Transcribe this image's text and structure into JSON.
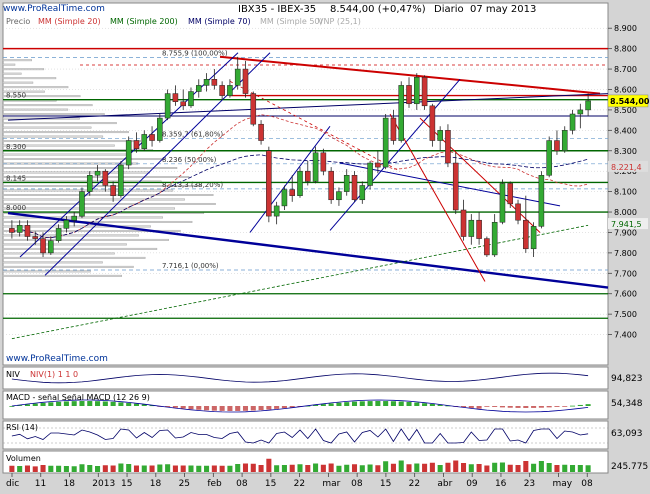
{
  "header": {
    "title": "IBX35 - IBEX-35",
    "price": "8.544,00 (+0,47%)",
    "period": "Diario",
    "date": "07 may 2013"
  },
  "watermark_url": "www.ProRealTime.com",
  "legend": [
    {
      "text": "Precio",
      "color": "#666666"
    },
    {
      "text": "MM (Simple 20)",
      "color": "#cc3333"
    },
    {
      "text": "MM (Simple 200)",
      "color": "#006600"
    },
    {
      "text": "MM (Simple 70)",
      "color": "#000066"
    },
    {
      "text": "MM (Simple 50)",
      "color": "#aaaaaa"
    },
    {
      "text": "VNP (25,1)",
      "color": "#aaaaaa"
    }
  ],
  "price_labels": {
    "y_axis": [
      "8.900",
      "8.800",
      "8.700",
      "8.600",
      "8.500",
      "8.400",
      "8.300",
      "8.200",
      "8.100",
      "8.000",
      "7.900",
      "7.800",
      "7.700",
      "7.600",
      "7.500",
      "7.400"
    ],
    "last_price": "8.544,00",
    "ma_20": "8.221,4",
    "ma_200": "7.941,5"
  },
  "fibonacci": [
    {
      "label": "8.755,9 (100,00%)",
      "value": 8755.9
    },
    {
      "label": "8.359,7 (61,80%)",
      "value": 8359.7
    },
    {
      "label": "8.236 (50,00%)",
      "value": 8236
    },
    {
      "label": "8.113,3 (38,20%)",
      "value": 8113.3
    },
    {
      "label": "7.716,1 (0,00%)",
      "value": 7716.1
    }
  ],
  "horizontal_levels": [
    {
      "label": "8.550",
      "value": 8550
    },
    {
      "label": "8.300",
      "value": 8300
    },
    {
      "label": "8.145",
      "value": 8145
    },
    {
      "label": "8.000",
      "value": 8000
    }
  ],
  "indicators": {
    "obv": {
      "name": "NIV",
      "sub": "NIV(1) 1 1 0",
      "value": "94,823"
    },
    "macd": {
      "name": "MACD",
      "sub": "MACD - señal  Señal  MACD (12 26 9)",
      "value": "54,348"
    },
    "rsi": {
      "name": "RSI (14)",
      "value": "63,093"
    },
    "volume": {
      "name": "Volumen",
      "value": "245.775"
    }
  },
  "x_axis": [
    "dic",
    "11",
    "18",
    "2013",
    "15",
    "18",
    "25",
    "feb",
    "08",
    "15",
    "22",
    "mar",
    "08",
    "15",
    "22",
    "abr",
    "09",
    "16",
    "23",
    "may",
    "08"
  ],
  "chart_data": {
    "type": "candlestick",
    "title": "IBX35 - IBEX-35",
    "ylim": [
      7300,
      8950
    ],
    "candles": [
      [
        7920,
        7960,
        7870,
        7900
      ],
      [
        7900,
        7960,
        7880,
        7935
      ],
      [
        7935,
        7960,
        7860,
        7880
      ],
      [
        7880,
        7905,
        7840,
        7870
      ],
      [
        7870,
        7900,
        7780,
        7800
      ],
      [
        7800,
        7880,
        7790,
        7860
      ],
      [
        7860,
        7940,
        7850,
        7920
      ],
      [
        7920,
        7980,
        7900,
        7960
      ],
      [
        7960,
        8000,
        7930,
        7980
      ],
      [
        7980,
        8120,
        7970,
        8100
      ],
      [
        8100,
        8200,
        8080,
        8180
      ],
      [
        8180,
        8230,
        8150,
        8200
      ],
      [
        8200,
        8210,
        8100,
        8130
      ],
      [
        8130,
        8150,
        8050,
        8080
      ],
      [
        8080,
        8250,
        8070,
        8230
      ],
      [
        8230,
        8370,
        8210,
        8350
      ],
      [
        8350,
        8390,
        8290,
        8310
      ],
      [
        8310,
        8400,
        8300,
        8380
      ],
      [
        8380,
        8420,
        8320,
        8350
      ],
      [
        8350,
        8480,
        8340,
        8460
      ],
      [
        8460,
        8600,
        8450,
        8580
      ],
      [
        8580,
        8620,
        8520,
        8540
      ],
      [
        8540,
        8600,
        8500,
        8520
      ],
      [
        8520,
        8610,
        8510,
        8590
      ],
      [
        8590,
        8650,
        8560,
        8620
      ],
      [
        8620,
        8680,
        8590,
        8650
      ],
      [
        8650,
        8700,
        8600,
        8620
      ],
      [
        8620,
        8640,
        8550,
        8570
      ],
      [
        8570,
        8650,
        8560,
        8620
      ],
      [
        8620,
        8760,
        8600,
        8700
      ],
      [
        8700,
        8740,
        8560,
        8580
      ],
      [
        8580,
        8590,
        8420,
        8430
      ],
      [
        8430,
        8450,
        8330,
        8350
      ],
      [
        8300,
        8320,
        7950,
        7980
      ],
      [
        7980,
        8050,
        7940,
        8030
      ],
      [
        8030,
        8130,
        8010,
        8110
      ],
      [
        8110,
        8180,
        8050,
        8080
      ],
      [
        8080,
        8220,
        8070,
        8200
      ],
      [
        8200,
        8250,
        8130,
        8150
      ],
      [
        8150,
        8320,
        8140,
        8290
      ],
      [
        8290,
        8310,
        8180,
        8200
      ],
      [
        8200,
        8220,
        8040,
        8060
      ],
      [
        8060,
        8120,
        8030,
        8100
      ],
      [
        8100,
        8210,
        8080,
        8180
      ],
      [
        8180,
        8200,
        8050,
        8060
      ],
      [
        8060,
        8150,
        8040,
        8130
      ],
      [
        8130,
        8250,
        8110,
        8240
      ],
      [
        8240,
        8300,
        8190,
        8220
      ],
      [
        8220,
        8480,
        8210,
        8460
      ],
      [
        8460,
        8500,
        8330,
        8350
      ],
      [
        8350,
        8640,
        8340,
        8620
      ],
      [
        8620,
        8660,
        8510,
        8530
      ],
      [
        8530,
        8680,
        8500,
        8660
      ],
      [
        8660,
        8670,
        8500,
        8520
      ],
      [
        8520,
        8530,
        8320,
        8350
      ],
      [
        8350,
        8420,
        8300,
        8400
      ],
      [
        8400,
        8430,
        8220,
        8240
      ],
      [
        8240,
        8290,
        7990,
        8010
      ],
      [
        8010,
        8060,
        7860,
        7880
      ],
      [
        7880,
        7990,
        7840,
        7960
      ],
      [
        7960,
        8000,
        7840,
        7870
      ],
      [
        7870,
        7880,
        7780,
        7790
      ],
      [
        7790,
        7990,
        7780,
        7950
      ],
      [
        7950,
        8160,
        7940,
        8140
      ],
      [
        8140,
        8150,
        8020,
        8040
      ],
      [
        8040,
        8060,
        7940,
        7960
      ],
      [
        7960,
        8080,
        7800,
        7820
      ],
      [
        7820,
        7950,
        7780,
        7930
      ],
      [
        7930,
        8200,
        7920,
        8180
      ],
      [
        8180,
        8370,
        8170,
        8350
      ],
      [
        8350,
        8400,
        8280,
        8300
      ],
      [
        8300,
        8420,
        8290,
        8400
      ],
      [
        8400,
        8500,
        8380,
        8480
      ],
      [
        8480,
        8530,
        8410,
        8500
      ],
      [
        8500,
        8580,
        8470,
        8544
      ]
    ]
  }
}
